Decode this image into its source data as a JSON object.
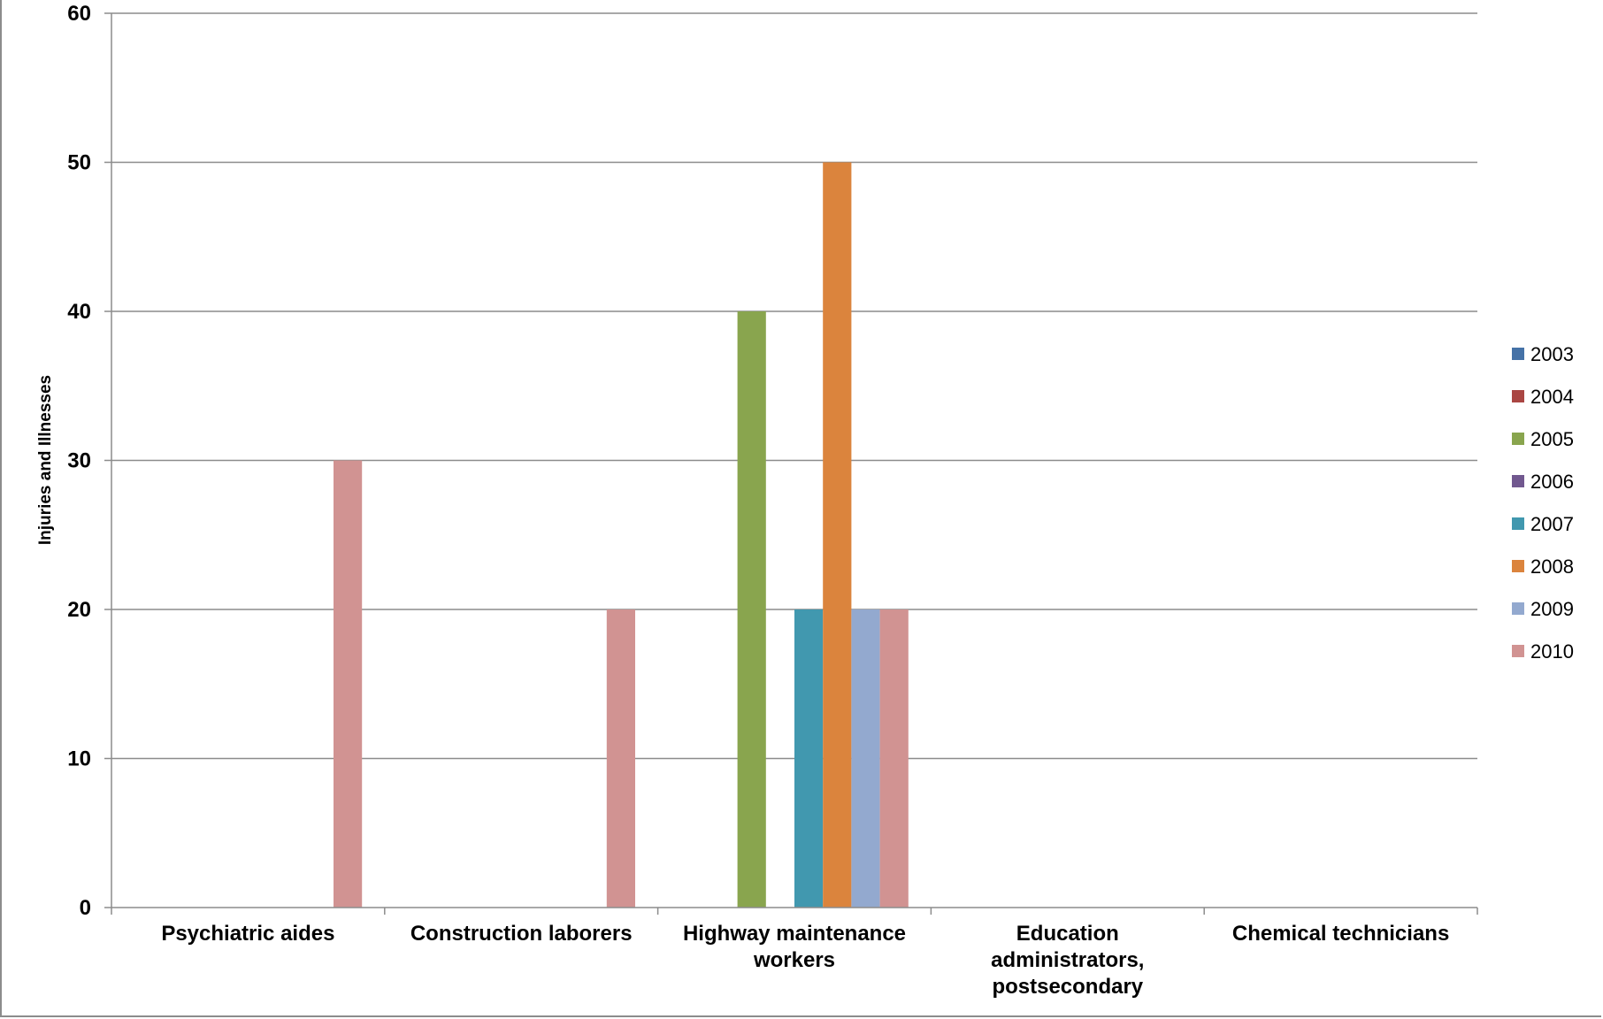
{
  "chart_data": {
    "type": "bar",
    "title": "",
    "xlabel": "",
    "ylabel": "Injuries and Illnesses",
    "ylim": [
      0,
      60
    ],
    "yticks": [
      0,
      10,
      20,
      30,
      40,
      50,
      60
    ],
    "grid": true,
    "legend_position": "right",
    "categories": [
      [
        "Psychiatric aides"
      ],
      [
        "Construction laborers"
      ],
      [
        "Highway maintenance",
        "workers"
      ],
      [
        "Education",
        "administrators,",
        "postsecondary"
      ],
      [
        "Chemical technicians"
      ]
    ],
    "series": [
      {
        "name": "2003",
        "color": "#4572A7",
        "values": [
          0,
          0,
          0,
          0,
          0
        ]
      },
      {
        "name": "2004",
        "color": "#AA4643",
        "values": [
          0,
          0,
          0,
          0,
          0
        ]
      },
      {
        "name": "2005",
        "color": "#89A54E",
        "values": [
          0,
          0,
          40,
          0,
          0
        ]
      },
      {
        "name": "2006",
        "color": "#71588F",
        "values": [
          0,
          0,
          0,
          0,
          0
        ]
      },
      {
        "name": "2007",
        "color": "#4198AF",
        "values": [
          0,
          0,
          20,
          0,
          0
        ]
      },
      {
        "name": "2008",
        "color": "#DB843D",
        "values": [
          0,
          0,
          50,
          0,
          0
        ]
      },
      {
        "name": "2009",
        "color": "#93A9CF",
        "values": [
          0,
          0,
          20,
          0,
          0
        ]
      },
      {
        "name": "2010",
        "color": "#D19392",
        "values": [
          30,
          20,
          20,
          0,
          0
        ]
      }
    ]
  }
}
